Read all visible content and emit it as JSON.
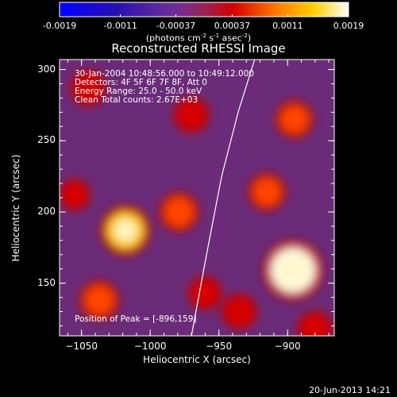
{
  "colorbar": {
    "ticks": [
      "-0.0019",
      "-0.0011",
      "-0.00037",
      "0.00037",
      "0.0011",
      "0.0019"
    ],
    "units_main": "(photons cm",
    "units_exp1": "-2",
    "units_mid": " s",
    "units_exp2": "-1",
    "units_mid2": " asec",
    "units_exp3": "-2",
    "units_end": ")",
    "range": [
      -0.0019,
      0.0019
    ]
  },
  "chart_data": {
    "type": "heatmap",
    "title": "Reconstructed RHESSI Image",
    "xlabel": "Heliocentric X (arcsec)",
    "ylabel": "Heliocentric Y (arcsec)",
    "xlim": [
      -1066,
      -866
    ],
    "ylim": [
      113,
      307
    ],
    "xticks": [
      -1050,
      -1000,
      -950,
      -900
    ],
    "yticks": [
      150,
      200,
      250,
      300
    ],
    "xtick_labels": [
      "−1050",
      "−1000",
      "−950",
      "−900"
    ],
    "ytick_labels": [
      "150",
      "200",
      "250",
      "300"
    ],
    "peak": [
      -896,
      159
    ],
    "sources": [
      {
        "x": -896,
        "y": 159,
        "value": 0.0019
      },
      {
        "x": -1018,
        "y": 187,
        "value": 0.0014
      },
      {
        "x": -979,
        "y": 200,
        "value": 0.0009
      },
      {
        "x": -1037,
        "y": 138,
        "value": 0.0009
      },
      {
        "x": -915,
        "y": 214,
        "value": 0.0008
      },
      {
        "x": -895,
        "y": 265,
        "value": 0.0008
      },
      {
        "x": -970,
        "y": 268,
        "value": 0.0007
      },
      {
        "x": -1045,
        "y": 287,
        "value": 0.0007
      },
      {
        "x": -935,
        "y": 130,
        "value": 0.0007
      },
      {
        "x": -960,
        "y": 143,
        "value": 0.0006
      },
      {
        "x": -880,
        "y": 118,
        "value": 0.0007
      },
      {
        "x": -1055,
        "y": 212,
        "value": 0.0005
      }
    ],
    "limb_x_at_y": [
      [
        -970,
        113
      ],
      [
        -959,
        170
      ],
      [
        -948,
        225
      ],
      [
        -936,
        270
      ],
      [
        -924,
        307
      ]
    ],
    "annotations": {
      "time": "30-Jan-2004 10:48:56.000 to 10:49:12.000",
      "detectors": "Detectors: 4F 5F 6F 7F 8F, Att 0",
      "energy": "Energy Range: 25.0 - 50.0 keV",
      "clean": "Clean     Total counts: 2.67E+03",
      "peak_label": "Position of Peak = [-896,159]"
    }
  },
  "footer_date": "20-Jun-2013 14:21"
}
